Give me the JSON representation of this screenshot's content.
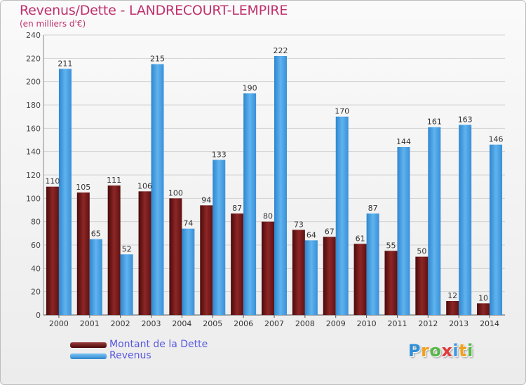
{
  "header": {
    "title": "Revenus/Dette - LANDRECOURT-LEMPIRE",
    "subtitle": "(en milliers d'€)"
  },
  "logo": {
    "text": "Proxiti"
  },
  "chart_data": {
    "type": "bar",
    "title": "Revenus/Dette - LANDRECOURT-LEMPIRE",
    "subtitle": "(en milliers d'€)",
    "categories": [
      "2000",
      "2001",
      "2002",
      "2003",
      "2004",
      "2005",
      "2006",
      "2007",
      "2008",
      "2009",
      "2010",
      "2011",
      "2012",
      "2013",
      "2014"
    ],
    "series": [
      {
        "name": "Montant de la Dette",
        "color": "#7a1d1d",
        "values": [
          110,
          105,
          111,
          106,
          100,
          94,
          87,
          80,
          73,
          67,
          61,
          55,
          50,
          12,
          10
        ]
      },
      {
        "name": "Revenus",
        "color": "#4aa3e6",
        "values": [
          211,
          65,
          52,
          215,
          74,
          133,
          190,
          222,
          64,
          170,
          87,
          144,
          161,
          163,
          146
        ]
      }
    ],
    "ylim": [
      0,
      240
    ],
    "yticks": [
      0,
      20,
      40,
      60,
      80,
      100,
      120,
      140,
      160,
      180,
      200,
      220,
      240
    ],
    "grid": true,
    "legend": "bottom-left"
  }
}
